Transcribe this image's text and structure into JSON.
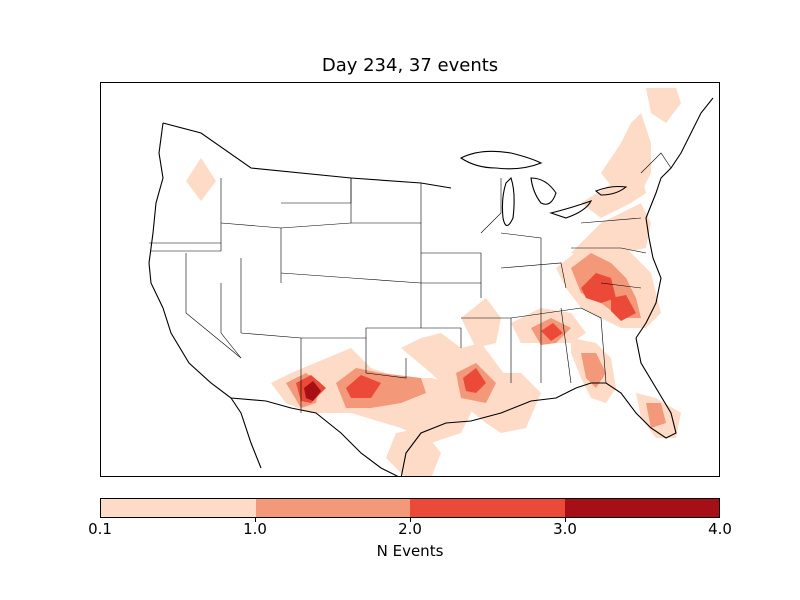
{
  "map": {
    "title": "Day 234, 37 events",
    "region": "Continental United States",
    "event_hotspots": [
      {
        "area": "Oregon",
        "level": "0.1-1.0"
      },
      {
        "area": "West Texas / New Mexico border",
        "level": "3.0-4.0"
      },
      {
        "area": "Texas / Oklahoma",
        "level": "1.0-2.0"
      },
      {
        "area": "East Texas / Louisiana",
        "level": "2.0-3.0"
      },
      {
        "area": "Alabama / Georgia",
        "level": "1.0-2.0"
      },
      {
        "area": "Virginia / North Carolina",
        "level": "2.0-3.0"
      },
      {
        "area": "South Carolina",
        "level": "2.0-3.0"
      },
      {
        "area": "Florida",
        "level": "1.0-2.0"
      },
      {
        "area": "Northeast / New England",
        "level": "0.1-1.0"
      }
    ]
  },
  "colorbar": {
    "label": "N Events",
    "ticks": [
      "0.1",
      "1.0",
      "2.0",
      "3.0",
      "4.0"
    ],
    "colors": [
      "#fddbc7",
      "#f4987a",
      "#ea4a37",
      "#d12b22",
      "#a50f15"
    ]
  }
}
